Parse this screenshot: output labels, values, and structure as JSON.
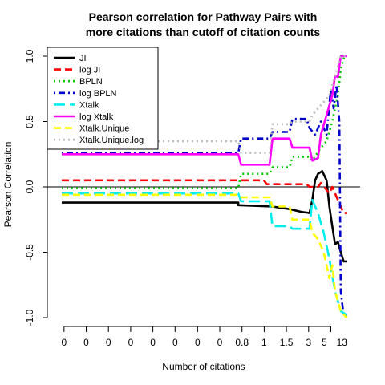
{
  "chart_data": {
    "type": "line",
    "title_lines": [
      "Pearson correlation for Pathway Pairs with",
      "more citations than cutoff of citation counts"
    ],
    "xlabel": "Number of citations",
    "ylabel": "Pearson Correlation",
    "ylim": [
      -1.0,
      1.0
    ],
    "xlim": [
      0,
      1
    ],
    "yticks": [
      -1.0,
      -0.5,
      0.0,
      0.5,
      1.0
    ],
    "ytick_labels": [
      "-1.0",
      "-0.5",
      "0.0",
      "0.5",
      "1.0"
    ],
    "xticks": [
      0.008,
      0.086,
      0.164,
      0.242,
      0.32,
      0.398,
      0.477,
      0.555,
      0.633,
      0.711,
      0.789,
      0.867,
      0.945
    ],
    "xtick_labels": [
      "0",
      "0",
      "0",
      "0",
      "0",
      "0",
      "0",
      "0",
      "0.8",
      "1",
      "1.5",
      "3",
      "5",
      "13"
    ],
    "xtick_label_positions": [
      0.008,
      0.086,
      0.164,
      0.242,
      0.32,
      0.398,
      0.477,
      0.555,
      0.633,
      0.711,
      0.789,
      0.867,
      0.922,
      0.984
    ],
    "hline_y": 0,
    "legend_position": "top-left",
    "series": [
      {
        "name": "JI",
        "color": "#000000",
        "dash": "solid",
        "points": [
          [
            0,
            -0.12
          ],
          [
            0.62,
            -0.12
          ],
          [
            0.62,
            -0.14
          ],
          [
            0.74,
            -0.15
          ],
          [
            0.8,
            -0.17
          ],
          [
            0.84,
            -0.19
          ],
          [
            0.87,
            -0.2
          ],
          [
            0.88,
            -0.1
          ],
          [
            0.89,
            0.05
          ],
          [
            0.9,
            0.1
          ],
          [
            0.915,
            0.12
          ],
          [
            0.93,
            0.05
          ],
          [
            0.94,
            -0.15
          ],
          [
            0.95,
            -0.3
          ],
          [
            0.96,
            -0.44
          ],
          [
            0.97,
            -0.42
          ],
          [
            0.98,
            -0.5
          ],
          [
            0.99,
            -0.57
          ],
          [
            1.0,
            -0.57
          ]
        ]
      },
      {
        "name": "log JI",
        "color": "#ff0000",
        "dash": "dashed",
        "points": [
          [
            0,
            0.05
          ],
          [
            0.71,
            0.05
          ],
          [
            0.72,
            0.02
          ],
          [
            0.86,
            0.02
          ],
          [
            0.87,
            0.0
          ],
          [
            0.9,
            0.0
          ],
          [
            0.91,
            0.03
          ],
          [
            0.94,
            -0.05
          ],
          [
            0.95,
            0.0
          ],
          [
            0.97,
            -0.1
          ],
          [
            0.98,
            -0.15
          ],
          [
            0.99,
            -0.2
          ],
          [
            1.0,
            -0.2
          ]
        ]
      },
      {
        "name": "BPLN",
        "color": "#00cc00",
        "dash": "dotted",
        "points": [
          [
            0,
            -0.01
          ],
          [
            0.62,
            -0.01
          ],
          [
            0.63,
            0.1
          ],
          [
            0.73,
            0.1
          ],
          [
            0.74,
            0.15
          ],
          [
            0.8,
            0.15
          ],
          [
            0.81,
            0.23
          ],
          [
            0.87,
            0.23
          ],
          [
            0.88,
            0.2
          ],
          [
            0.91,
            0.3
          ],
          [
            0.93,
            0.35
          ],
          [
            0.95,
            0.5
          ],
          [
            0.97,
            0.7
          ],
          [
            0.98,
            0.9
          ],
          [
            0.99,
            0.98
          ],
          [
            1.0,
            1.0
          ]
        ]
      },
      {
        "name": "log BPLN",
        "color": "#0000cc",
        "dash": "dotdash",
        "points": [
          [
            0,
            0.26
          ],
          [
            0.62,
            0.26
          ],
          [
            0.63,
            0.37
          ],
          [
            0.73,
            0.37
          ],
          [
            0.74,
            0.42
          ],
          [
            0.8,
            0.42
          ],
          [
            0.81,
            0.52
          ],
          [
            0.86,
            0.52
          ],
          [
            0.87,
            0.45
          ],
          [
            0.89,
            0.4
          ],
          [
            0.91,
            0.5
          ],
          [
            0.93,
            0.4
          ],
          [
            0.945,
            0.75
          ],
          [
            0.955,
            0.6
          ],
          [
            0.965,
            0.78
          ],
          [
            0.975,
            0.5
          ],
          [
            0.98,
            -0.8
          ],
          [
            0.99,
            -0.98
          ],
          [
            1.0,
            -0.98
          ]
        ]
      },
      {
        "name": "Xtalk",
        "color": "#00eeee",
        "dash": "longdash",
        "points": [
          [
            0,
            -0.05
          ],
          [
            0.62,
            -0.05
          ],
          [
            0.63,
            -0.11
          ],
          [
            0.73,
            -0.11
          ],
          [
            0.74,
            -0.3
          ],
          [
            0.8,
            -0.3
          ],
          [
            0.81,
            -0.32
          ],
          [
            0.87,
            -0.32
          ],
          [
            0.88,
            -0.1
          ],
          [
            0.9,
            -0.2
          ],
          [
            0.92,
            -0.35
          ],
          [
            0.94,
            -0.55
          ],
          [
            0.96,
            -0.8
          ],
          [
            0.98,
            -0.95
          ],
          [
            1.0,
            -0.98
          ]
        ]
      },
      {
        "name": "log Xtalk",
        "color": "#ff00ff",
        "dash": "solid",
        "points": [
          [
            0,
            0.25
          ],
          [
            0.62,
            0.25
          ],
          [
            0.63,
            0.17
          ],
          [
            0.73,
            0.17
          ],
          [
            0.74,
            0.37
          ],
          [
            0.8,
            0.37
          ],
          [
            0.81,
            0.3
          ],
          [
            0.87,
            0.3
          ],
          [
            0.88,
            0.2
          ],
          [
            0.9,
            0.22
          ],
          [
            0.91,
            0.4
          ],
          [
            0.93,
            0.55
          ],
          [
            0.95,
            0.7
          ],
          [
            0.96,
            0.85
          ],
          [
            0.97,
            0.84
          ],
          [
            0.98,
            1.0
          ],
          [
            1.0,
            1.0
          ]
        ]
      },
      {
        "name": "Xtalk.Unique",
        "color": "#ffff00",
        "dash": "dashed",
        "points": [
          [
            0,
            -0.06
          ],
          [
            0.62,
            -0.06
          ],
          [
            0.63,
            -0.08
          ],
          [
            0.73,
            -0.08
          ],
          [
            0.74,
            -0.15
          ],
          [
            0.8,
            -0.15
          ],
          [
            0.81,
            -0.25
          ],
          [
            0.87,
            -0.25
          ],
          [
            0.88,
            -0.35
          ],
          [
            0.9,
            -0.4
          ],
          [
            0.92,
            -0.5
          ],
          [
            0.94,
            -0.7
          ],
          [
            0.95,
            -0.6
          ],
          [
            0.96,
            -0.8
          ],
          [
            0.98,
            -0.95
          ],
          [
            1.0,
            -1.0
          ]
        ]
      },
      {
        "name": "Xtalk.Unique.log",
        "color": "#bbbbbb",
        "dash": "dotted",
        "points": [
          [
            0,
            0.35
          ],
          [
            0.62,
            0.35
          ],
          [
            0.63,
            0.26
          ],
          [
            0.73,
            0.26
          ],
          [
            0.74,
            0.48
          ],
          [
            0.8,
            0.48
          ],
          [
            0.81,
            0.5
          ],
          [
            0.87,
            0.5
          ],
          [
            0.88,
            0.55
          ],
          [
            0.9,
            0.6
          ],
          [
            0.92,
            0.65
          ],
          [
            0.94,
            0.7
          ],
          [
            0.96,
            0.85
          ],
          [
            0.98,
            1.0
          ],
          [
            1.0,
            1.0
          ]
        ]
      }
    ]
  }
}
